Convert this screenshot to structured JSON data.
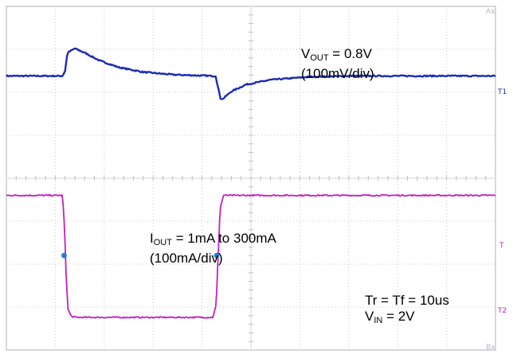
{
  "chart_data": {
    "type": "line",
    "title": "",
    "xlabel": "",
    "ylabel": "",
    "grid": true,
    "x_divisions": 10,
    "y_divisions": 8,
    "series": [
      {
        "name": "V_OUT",
        "color": "#1c2cb4",
        "samples": [
          [
            0.0,
            6.38
          ],
          [
            1.15,
            6.38
          ],
          [
            1.2,
            6.5
          ],
          [
            1.25,
            6.92
          ],
          [
            1.4,
            7.02
          ],
          [
            1.6,
            6.92
          ],
          [
            1.9,
            6.74
          ],
          [
            2.3,
            6.58
          ],
          [
            2.8,
            6.47
          ],
          [
            3.4,
            6.41
          ],
          [
            4.2,
            6.38
          ],
          [
            4.28,
            6.38
          ],
          [
            4.32,
            6.15
          ],
          [
            4.38,
            5.86
          ],
          [
            4.42,
            5.84
          ],
          [
            4.6,
            6.02
          ],
          [
            4.9,
            6.18
          ],
          [
            5.4,
            6.29
          ],
          [
            6.2,
            6.36
          ],
          [
            7.0,
            6.38
          ],
          [
            10.0,
            6.38
          ]
        ]
      },
      {
        "name": "I_OUT",
        "color": "#c020c0",
        "samples": [
          [
            0.0,
            3.6
          ],
          [
            1.15,
            3.6
          ],
          [
            1.19,
            2.8
          ],
          [
            1.22,
            1.8
          ],
          [
            1.26,
            0.95
          ],
          [
            1.33,
            0.78
          ],
          [
            1.45,
            0.76
          ],
          [
            4.22,
            0.76
          ],
          [
            4.29,
            1.05
          ],
          [
            4.33,
            2.2
          ],
          [
            4.37,
            3.3
          ],
          [
            4.44,
            3.6
          ],
          [
            10.0,
            3.6
          ]
        ]
      }
    ],
    "markers": [
      "T1",
      "T",
      "T2",
      "Ax",
      "Bx"
    ],
    "annotations": [
      {
        "line1_main": "V",
        "line1_sub": "OUT",
        "line1_tail": " = 0.8V",
        "line2": "(100mV/div)"
      },
      {
        "line1_main": "I",
        "line1_sub": "OUT",
        "line1_tail": " = 1mA to 300mA",
        "line2": "(100mA/div)"
      },
      {
        "line1_main": "Tr = Tf = 10us",
        "line2_main": "V",
        "line2_sub": "IN",
        "line2_tail": " = 2V"
      }
    ]
  }
}
